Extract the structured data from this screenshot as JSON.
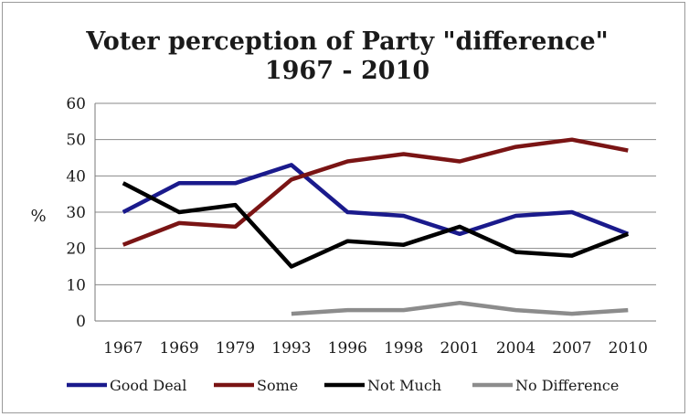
{
  "chart_data": {
    "type": "line",
    "title_line1": "Voter perception of Party \"difference\"",
    "title_line2": "1967 - 2010",
    "ylabel": "%",
    "xlabel": "",
    "ylim": [
      0,
      60
    ],
    "yticks": [
      0,
      10,
      20,
      30,
      40,
      50,
      60
    ],
    "grid": true,
    "legend_position": "bottom",
    "categories": [
      "1967",
      "1969",
      "1979",
      "1993",
      "1996",
      "1998",
      "2001",
      "2004",
      "2007",
      "2010"
    ],
    "series": [
      {
        "name": "Good Deal",
        "color": "#1a1a8c",
        "values": [
          30,
          38,
          38,
          43,
          30,
          29,
          24,
          29,
          30,
          24
        ]
      },
      {
        "name": "Some",
        "color": "#7a1414",
        "values": [
          21,
          27,
          26,
          39,
          44,
          46,
          44,
          48,
          50,
          47
        ]
      },
      {
        "name": "Not Much",
        "color": "#000000",
        "values": [
          38,
          30,
          32,
          15,
          22,
          21,
          26,
          19,
          18,
          24
        ]
      },
      {
        "name": "No Difference",
        "color": "#8c8c8c",
        "values": [
          null,
          null,
          null,
          2,
          3,
          3,
          5,
          3,
          2,
          3
        ]
      }
    ]
  }
}
